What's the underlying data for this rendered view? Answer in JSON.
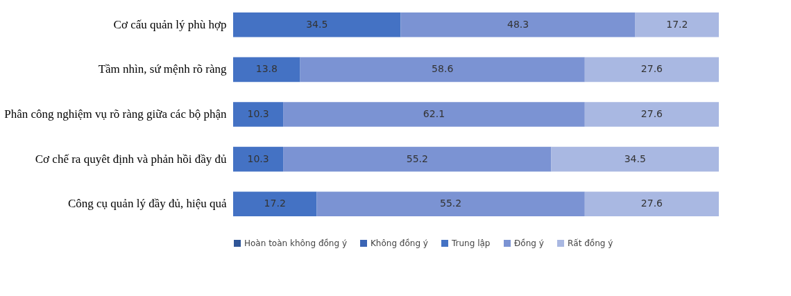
{
  "chart_data": {
    "type": "bar",
    "orientation": "horizontal",
    "stacked": true,
    "data_labels": true,
    "legend": "bottom",
    "categories": [
      "Cơ cấu quản lý phù hợp",
      "Tầm nhìn, sứ mệnh rõ ràng",
      "Phân công nghiệm vụ rõ ràng giữa các bộ phận",
      "Cơ chế ra quyêt định và phản hồi đầy đủ",
      "Công cụ quản lý đầy đủ, hiệu quả"
    ],
    "series": [
      {
        "name": "Hoàn toàn không đồng ý",
        "color": "#2f5597",
        "values": [
          null,
          null,
          null,
          null,
          null
        ]
      },
      {
        "name": "Không đồng ý",
        "color": "#3a64b4",
        "values": [
          null,
          null,
          null,
          null,
          null
        ]
      },
      {
        "name": "Trung lập",
        "color": "#4472c4",
        "values": [
          34.5,
          13.8,
          10.3,
          10.3,
          17.2
        ]
      },
      {
        "name": "Đồng ý",
        "color": "#7b93d3",
        "values": [
          48.3,
          58.6,
          62.1,
          55.2,
          55.2
        ]
      },
      {
        "name": "Rất đồng ý",
        "color": "#a9b8e2",
        "values": [
          17.2,
          27.6,
          27.6,
          34.5,
          27.6
        ]
      }
    ]
  }
}
